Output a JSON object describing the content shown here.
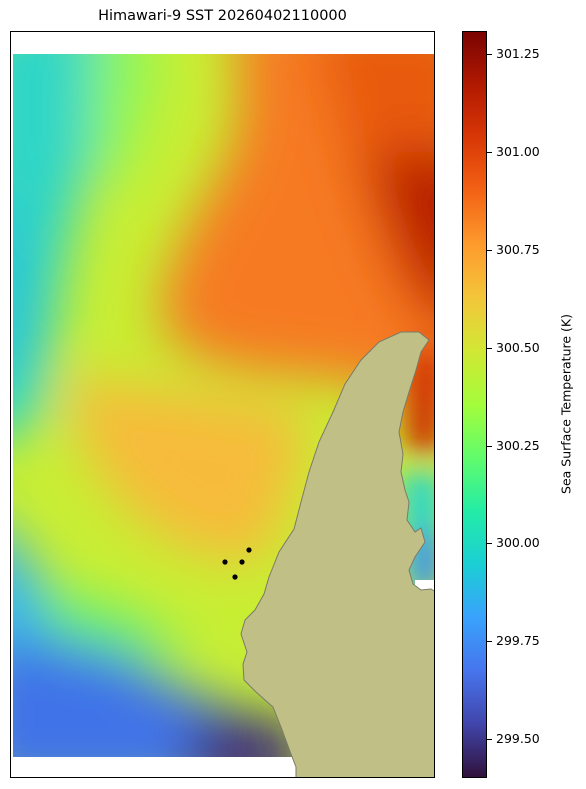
{
  "title": "Himawari-9 SST 20260402110000",
  "colorbar": {
    "label": "Sea Surface Temperature (K)",
    "min": 299.4,
    "max": 301.31,
    "ticks": [
      "301.25",
      "301.00",
      "300.75",
      "300.50",
      "300.25",
      "300.00",
      "299.75",
      "299.50"
    ],
    "stops": [
      "#30123b",
      "#4145ab",
      "#4675ed",
      "#39a2fc",
      "#1bcfd4",
      "#24eca6",
      "#61fc6c",
      "#a4fc3b",
      "#d1e834",
      "#f3c63a",
      "#fe9b2d",
      "#f36315",
      "#d93806",
      "#b11901",
      "#7a0402"
    ]
  },
  "colors": {
    "land": "#c0c086",
    "coast": "#7a7a6a",
    "background": "#ffffff"
  },
  "chart_data": {
    "type": "heatmap",
    "title": "Himawari-9 SST 20260402110000",
    "colorbar_label": "Sea Surface Temperature (K)",
    "value_range": [
      299.4,
      301.31
    ],
    "description_fields": {
      "warm_region": "north-east",
      "cool_region": "south-west"
    },
    "markers": [
      {
        "id": 1
      },
      {
        "id": 2
      },
      {
        "id": 3
      },
      {
        "id": 4
      }
    ]
  }
}
